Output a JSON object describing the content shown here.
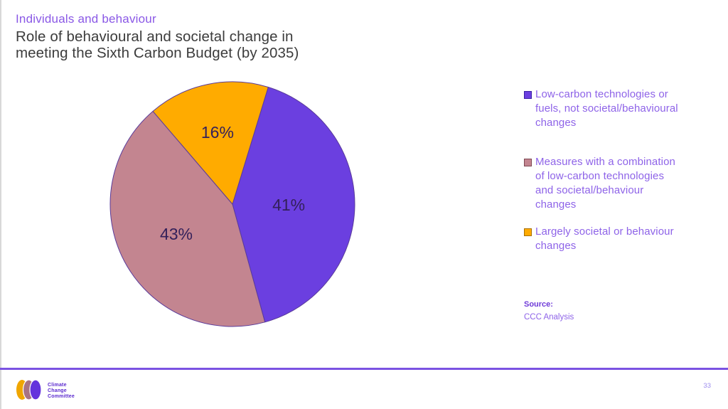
{
  "slide": {
    "eyebrow": "Individuals and behaviour",
    "title": "Role of behavioural and societal change in\nmeeting the Sixth Carbon Budget (by 2035)",
    "source": {
      "label": "Source:",
      "value": "CCC Analysis"
    },
    "page_number": "33",
    "footer": {
      "logo_lines": [
        "Climate",
        "Change",
        "Committee"
      ],
      "logo_colors": [
        "#f0a600",
        "#a87384",
        "#6433dc"
      ],
      "rule_color": "#7b52e2"
    }
  },
  "chart_data": {
    "type": "pie",
    "title": "Role of behavioural and societal change in meeting the Sixth Carbon Budget (by 2035)",
    "unit": "percent",
    "direction": "clockwise",
    "rotation_deg": 17,
    "legend_position": "right",
    "slices": [
      {
        "label": "Low-carbon technologies or\nfuels, not societal/behavioural\nchanges",
        "value": 41,
        "color": "#6b3fe0",
        "swatch_border": "#3a21a6"
      },
      {
        "label": "Measures with a combination\nof low-carbon technologies\nand societal/behaviour\nchanges",
        "value": 43,
        "color": "#c38590",
        "swatch_border": "#7e4853"
      },
      {
        "label": "Largely societal or behaviour\nchanges",
        "value": 16,
        "color": "#ffab00",
        "swatch_border": "#a86f00"
      }
    ],
    "data_labels": [
      "41%",
      "43%",
      "16%"
    ],
    "data_label_color": "#33205a",
    "outline_color": "#5a3b9b",
    "label_radius": [
      0.46,
      0.52,
      0.6
    ]
  }
}
